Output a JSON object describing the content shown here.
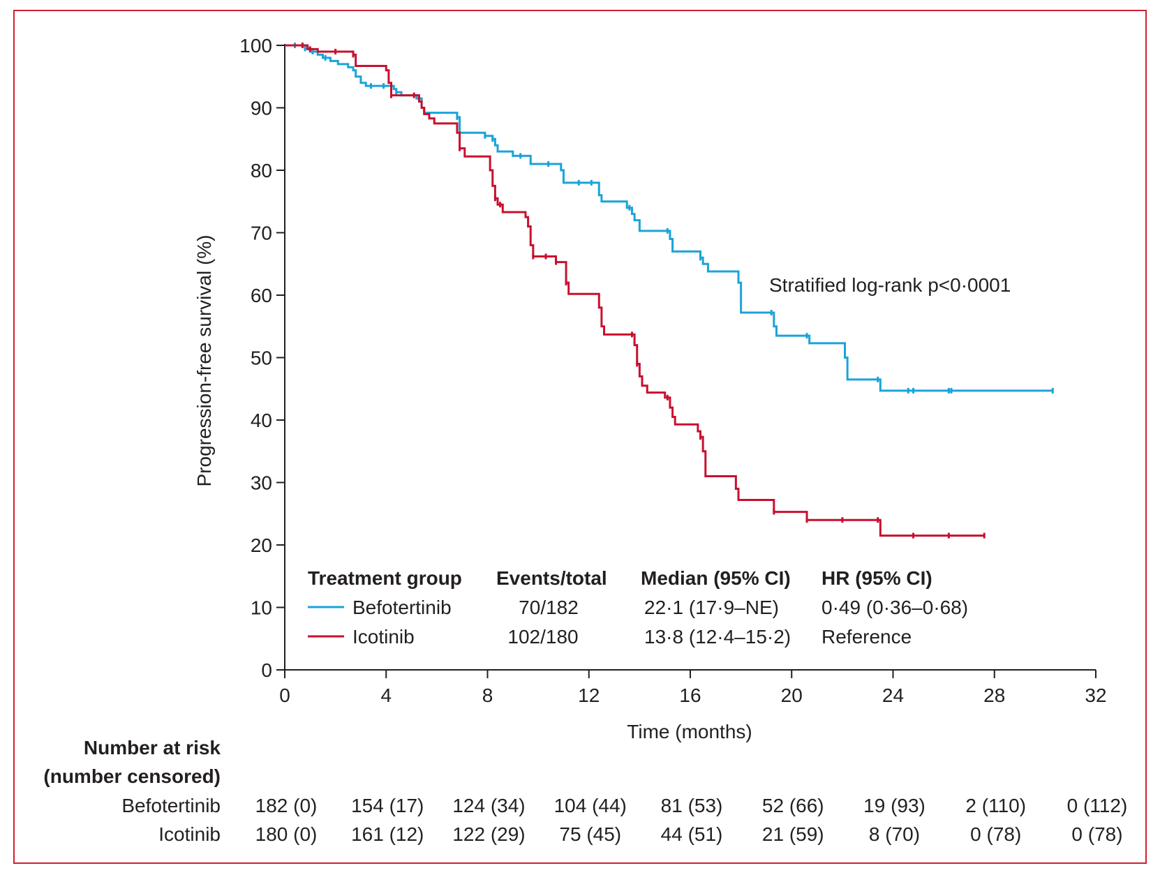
{
  "colors": {
    "befotertinib": "#1ba3d8",
    "icotinib": "#c8102e",
    "frame": "#cf2033",
    "axis": "#231f20"
  },
  "chart_data": {
    "type": "line",
    "xlabel": "Time (months)",
    "ylabel": "Progression-free survival (%)",
    "xlim": [
      0,
      32
    ],
    "ylim": [
      0,
      100
    ],
    "xticks": [
      "0",
      "4",
      "8",
      "12",
      "16",
      "20",
      "24",
      "28",
      "32"
    ],
    "yticks": [
      "0",
      "10",
      "20",
      "30",
      "40",
      "50",
      "60",
      "70",
      "80",
      "90",
      "100"
    ],
    "annotation": "Stratified log-rank p<0·0001",
    "legend": {
      "headers": [
        "Treatment group",
        "Events/total",
        "Median (95% CI)",
        "HR (95% CI)"
      ],
      "rows": [
        {
          "group": "Befotertinib",
          "events": "70/182",
          "median": "22·1 (17·9–NE)",
          "hr": "0·49 (0·36–0·68)"
        },
        {
          "group": "Icotinib",
          "events": "102/180",
          "median": "13·8 (12·4–15·2)",
          "hr": "Reference"
        }
      ]
    },
    "series": [
      {
        "name": "Befotertinib",
        "steps": [
          [
            0,
            100
          ],
          [
            0.8,
            99.5
          ],
          [
            1.0,
            99
          ],
          [
            1.3,
            98.5
          ],
          [
            1.5,
            98
          ],
          [
            1.8,
            97.5
          ],
          [
            2.1,
            97
          ],
          [
            2.5,
            96.5
          ],
          [
            2.7,
            96
          ],
          [
            2.8,
            95
          ],
          [
            3.0,
            94
          ],
          [
            3.2,
            93.5
          ],
          [
            4.3,
            93
          ],
          [
            4.4,
            92.5
          ],
          [
            4.6,
            92
          ],
          [
            5.2,
            91.5
          ],
          [
            5.4,
            90
          ],
          [
            5.5,
            89.2
          ],
          [
            6.8,
            88.5
          ],
          [
            6.9,
            86
          ],
          [
            7.9,
            85.5
          ],
          [
            8.2,
            85
          ],
          [
            8.3,
            84
          ],
          [
            8.4,
            83
          ],
          [
            9.0,
            82.3
          ],
          [
            9.7,
            81
          ],
          [
            10.9,
            80
          ],
          [
            11.0,
            78
          ],
          [
            12.4,
            76
          ],
          [
            12.5,
            75
          ],
          [
            13.5,
            74
          ],
          [
            13.7,
            73
          ],
          [
            13.8,
            72
          ],
          [
            14.0,
            70.3
          ],
          [
            15.2,
            69
          ],
          [
            15.3,
            67
          ],
          [
            16.4,
            66
          ],
          [
            16.5,
            65
          ],
          [
            16.7,
            63.8
          ],
          [
            17.9,
            62
          ],
          [
            18.0,
            57.2
          ],
          [
            19.3,
            55
          ],
          [
            19.4,
            53.5
          ],
          [
            20.7,
            52.3
          ],
          [
            22.1,
            50
          ],
          [
            22.2,
            46.5
          ],
          [
            23.5,
            44.7
          ]
        ],
        "end": 30.3,
        "censored": [
          0.4,
          0.8,
          1.1,
          1.6,
          3.4,
          3.9,
          4.4,
          5.3,
          6.8,
          7.9,
          8.2,
          9.3,
          10.4,
          11.6,
          12.1,
          13.6,
          15.1,
          16.4,
          19.2,
          20.6,
          23.4,
          24.6,
          24.8,
          26.2,
          26.3,
          30.3
        ]
      },
      {
        "name": "Icotinib",
        "steps": [
          [
            0,
            100
          ],
          [
            0.9,
            99.4
          ],
          [
            1.3,
            99
          ],
          [
            2.7,
            98.5
          ],
          [
            2.8,
            96.7
          ],
          [
            4.0,
            96
          ],
          [
            4.1,
            94
          ],
          [
            4.2,
            92
          ],
          [
            5.3,
            91
          ],
          [
            5.4,
            90
          ],
          [
            5.5,
            89
          ],
          [
            5.7,
            88.3
          ],
          [
            5.9,
            87.5
          ],
          [
            6.8,
            86
          ],
          [
            6.9,
            83.5
          ],
          [
            7.1,
            82.2
          ],
          [
            8.1,
            80
          ],
          [
            8.2,
            77.5
          ],
          [
            8.3,
            75.5
          ],
          [
            8.4,
            74.5
          ],
          [
            8.6,
            73.3
          ],
          [
            9.5,
            72.5
          ],
          [
            9.6,
            71
          ],
          [
            9.7,
            68
          ],
          [
            9.8,
            66.2
          ],
          [
            10.7,
            65.3
          ],
          [
            11.1,
            62
          ],
          [
            11.2,
            60.2
          ],
          [
            12.4,
            58
          ],
          [
            12.5,
            55
          ],
          [
            12.6,
            53.7
          ],
          [
            13.8,
            52
          ],
          [
            13.9,
            49
          ],
          [
            14.0,
            47
          ],
          [
            14.1,
            45.5
          ],
          [
            14.3,
            44.4
          ],
          [
            15.0,
            43.6
          ],
          [
            15.2,
            42
          ],
          [
            15.3,
            40.5
          ],
          [
            15.4,
            39.3
          ],
          [
            16.3,
            38.2
          ],
          [
            16.4,
            37.3
          ],
          [
            16.5,
            35
          ],
          [
            16.6,
            31
          ],
          [
            17.8,
            29
          ],
          [
            17.9,
            27.2
          ],
          [
            19.3,
            25.3
          ],
          [
            20.6,
            24
          ],
          [
            23.5,
            21.5
          ]
        ],
        "end": 27.6,
        "censored": [
          0.7,
          1.0,
          2.0,
          2.7,
          4.2,
          5.1,
          6.9,
          8.3,
          8.5,
          9.8,
          10.3,
          10.7,
          11.1,
          13.7,
          13.9,
          15.1,
          16.4,
          19.3,
          20.6,
          22.0,
          23.4,
          24.8,
          26.2,
          27.6
        ]
      }
    ]
  },
  "risk_table": {
    "title_line1": "Number at risk",
    "title_line2": "(number censored)",
    "rows": [
      {
        "label": "Befotertinib",
        "values": [
          "182 (0)",
          "154 (17)",
          "124 (34)",
          "104 (44)",
          "81 (53)",
          "52 (66)",
          "19 (93)",
          "2 (110)",
          "0 (112)"
        ]
      },
      {
        "label": "Icotinib",
        "values": [
          "180 (0)",
          "161 (12)",
          "122 (29)",
          "75 (45)",
          "44 (51)",
          "21 (59)",
          "8 (70)",
          "0 (78)",
          "0 (78)"
        ]
      }
    ]
  }
}
